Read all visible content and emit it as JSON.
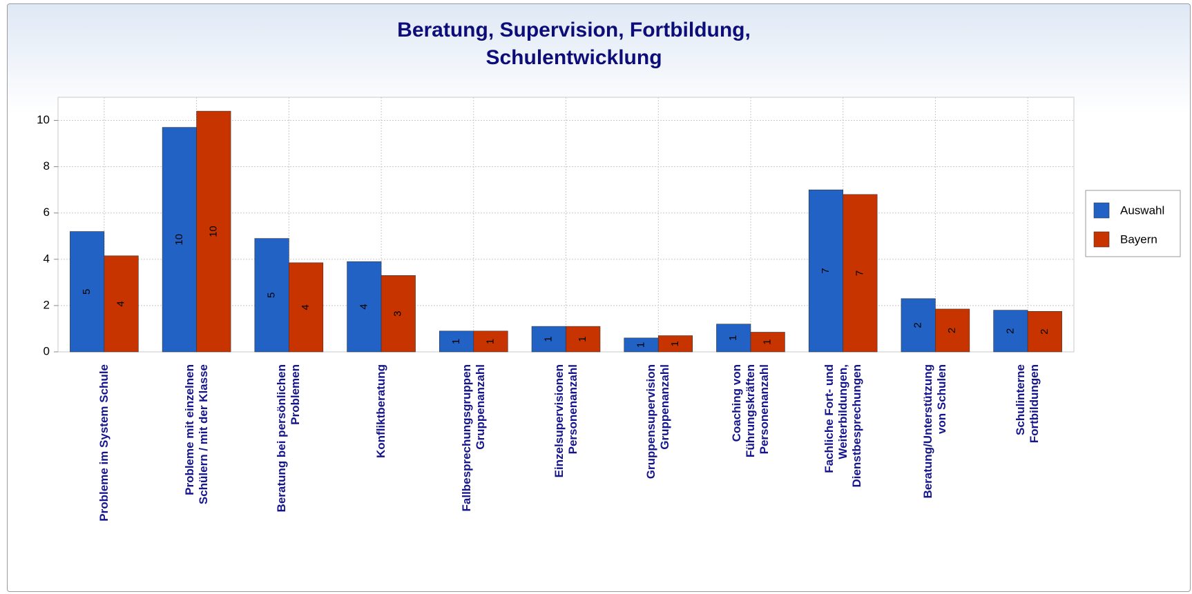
{
  "chart_data": {
    "type": "bar",
    "title": "Beratung, Supervision, Fortbildung,\nSchulentwicklung",
    "categories": [
      "Probleme im System Schule",
      "Probleme mit einzelnen\nSchülern / mit der Klasse",
      "Beratung bei persönlichen\nProblemen",
      "Konfliktberatung",
      "Fallbesprechungsgruppen\nGruppenanzahl",
      "Einzelsupervisionen\nPersonenanzahl",
      "Gruppensupervision\nGruppenanzahl",
      "Coaching von\nFührungskräften\nPersonenanzahl",
      "Fachliche Fort- und\nWeiterbildungen,\nDienstbesprechungen",
      "Beratung/Unterstützung\nvon Schulen",
      "Schulinterne\nFortbildungen"
    ],
    "series": [
      {
        "name": "Auswahl",
        "color": "#2162c4",
        "values": [
          5.2,
          9.7,
          4.9,
          3.9,
          0.9,
          1.1,
          0.6,
          1.2,
          7.0,
          2.3,
          1.8
        ],
        "value_labels": [
          "5",
          "10",
          "5",
          "4",
          "1",
          "1",
          "1",
          "1",
          "7",
          "2",
          "2"
        ]
      },
      {
        "name": "Bayern",
        "color": "#c83400",
        "values": [
          4.15,
          10.4,
          3.85,
          3.3,
          0.9,
          1.1,
          0.7,
          0.85,
          6.8,
          1.85,
          1.75
        ],
        "value_labels": [
          "4",
          "10",
          "4",
          "3",
          "1",
          "1",
          "1",
          "1",
          "7",
          "2",
          "2"
        ]
      }
    ],
    "ylim": [
      0,
      11
    ],
    "yticks": [
      0,
      2,
      4,
      6,
      8,
      10
    ],
    "grid": true,
    "legend": "right"
  }
}
